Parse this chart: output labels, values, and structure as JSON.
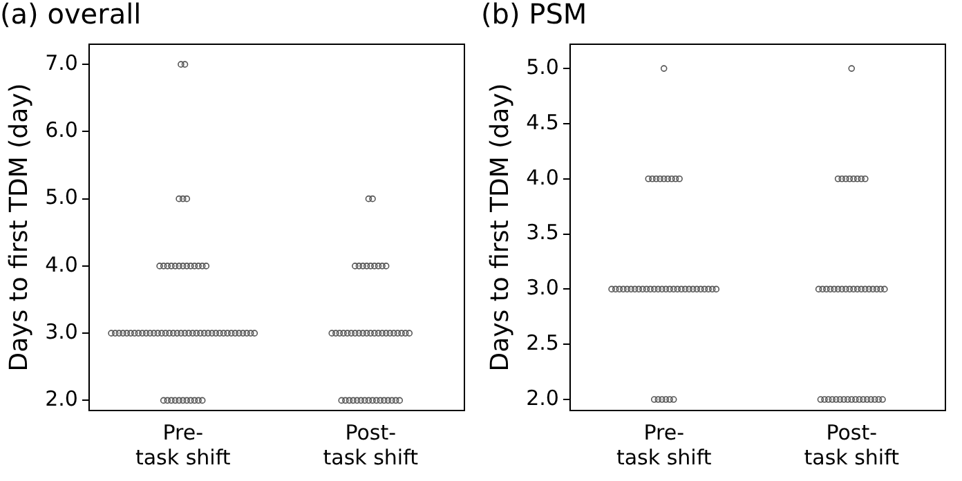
{
  "chart_data": [
    {
      "type": "scatter",
      "title": "(a) overall",
      "ylabel": "Days to first TDM (day)",
      "categories": [
        "Pre-\ntask shift",
        "Post-\ntask shift"
      ],
      "ylim": [
        1.85,
        7.3
      ],
      "yticks": [
        {
          "value": 2,
          "label": "2.0"
        },
        {
          "value": 3,
          "label": "3.0"
        },
        {
          "value": 4,
          "label": "4.0"
        },
        {
          "value": 5,
          "label": "5.0"
        },
        {
          "value": 6,
          "label": "6.0"
        },
        {
          "value": 7,
          "label": "7.0"
        }
      ],
      "grid": false,
      "legend": false,
      "marker": "circle",
      "series": [
        {
          "color": "#555555",
          "x": [
            "Pre-\ntask shift",
            "Pre-\ntask shift",
            "Pre-\ntask shift",
            "Pre-\ntask shift",
            "Pre-\ntask shift",
            "Pre-\ntask shift",
            "Pre-\ntask shift",
            "Pre-\ntask shift",
            "Pre-\ntask shift",
            "Pre-\ntask shift",
            "Pre-\ntask shift",
            "Pre-\ntask shift",
            "Pre-\ntask shift",
            "Pre-\ntask shift",
            "Pre-\ntask shift",
            "Pre-\ntask shift",
            "Pre-\ntask shift",
            "Pre-\ntask shift",
            "Pre-\ntask shift",
            "Pre-\ntask shift",
            "Pre-\ntask shift",
            "Pre-\ntask shift",
            "Pre-\ntask shift",
            "Pre-\ntask shift",
            "Pre-\ntask shift",
            "Pre-\ntask shift",
            "Pre-\ntask shift",
            "Pre-\ntask shift",
            "Pre-\ntask shift",
            "Pre-\ntask shift",
            "Pre-\ntask shift",
            "Pre-\ntask shift",
            "Pre-\ntask shift",
            "Pre-\ntask shift",
            "Pre-\ntask shift",
            "Pre-\ntask shift",
            "Pre-\ntask shift",
            "Pre-\ntask shift",
            "Pre-\ntask shift",
            "Pre-\ntask shift",
            "Pre-\ntask shift",
            "Pre-\ntask shift",
            "Pre-\ntask shift",
            "Pre-\ntask shift",
            "Pre-\ntask shift",
            "Pre-\ntask shift",
            "Pre-\ntask shift",
            "Pre-\ntask shift",
            "Pre-\ntask shift",
            "Pre-\ntask shift",
            "Pre-\ntask shift",
            "Pre-\ntask shift",
            "Pre-\ntask shift",
            "Pre-\ntask shift",
            "Pre-\ntask shift",
            "Pre-\ntask shift",
            "Pre-\ntask shift",
            "Pre-\ntask shift",
            "Pre-\ntask shift",
            "Pre-\ntask shift",
            "Pre-\ntask shift",
            "Pre-\ntask shift",
            "Pre-\ntask shift",
            "Pre-\ntask shift",
            "Pre-\ntask shift",
            "Pre-\ntask shift",
            "Pre-\ntask shift"
          ],
          "values": [
            2,
            2,
            2,
            2,
            2,
            2,
            2,
            2,
            2,
            2,
            2,
            3,
            3,
            3,
            3,
            3,
            3,
            3,
            3,
            3,
            3,
            3,
            3,
            3,
            3,
            3,
            3,
            3,
            3,
            3,
            3,
            3,
            3,
            3,
            3,
            3,
            3,
            3,
            3,
            3,
            3,
            3,
            3,
            3,
            3,
            3,
            3,
            3,
            3,
            4,
            4,
            4,
            4,
            4,
            4,
            4,
            4,
            4,
            4,
            4,
            4,
            4,
            5,
            5,
            5,
            7,
            7
          ]
        },
        {
          "color": "#555555",
          "x": [
            "Post-\ntask shift",
            "Post-\ntask shift",
            "Post-\ntask shift",
            "Post-\ntask shift",
            "Post-\ntask shift",
            "Post-\ntask shift",
            "Post-\ntask shift",
            "Post-\ntask shift",
            "Post-\ntask shift",
            "Post-\ntask shift",
            "Post-\ntask shift",
            "Post-\ntask shift",
            "Post-\ntask shift",
            "Post-\ntask shift",
            "Post-\ntask shift",
            "Post-\ntask shift",
            "Post-\ntask shift",
            "Post-\ntask shift",
            "Post-\ntask shift",
            "Post-\ntask shift",
            "Post-\ntask shift",
            "Post-\ntask shift",
            "Post-\ntask shift",
            "Post-\ntask shift",
            "Post-\ntask shift",
            "Post-\ntask shift",
            "Post-\ntask shift",
            "Post-\ntask shift",
            "Post-\ntask shift",
            "Post-\ntask shift",
            "Post-\ntask shift",
            "Post-\ntask shift",
            "Post-\ntask shift",
            "Post-\ntask shift",
            "Post-\ntask shift",
            "Post-\ntask shift",
            "Post-\ntask shift",
            "Post-\ntask shift",
            "Post-\ntask shift",
            "Post-\ntask shift",
            "Post-\ntask shift",
            "Post-\ntask shift",
            "Post-\ntask shift",
            "Post-\ntask shift",
            "Post-\ntask shift",
            "Post-\ntask shift",
            "Post-\ntask shift",
            "Post-\ntask shift"
          ],
          "values": [
            2,
            2,
            2,
            2,
            2,
            2,
            2,
            2,
            2,
            2,
            2,
            2,
            2,
            2,
            2,
            2,
            3,
            3,
            3,
            3,
            3,
            3,
            3,
            3,
            3,
            3,
            3,
            3,
            3,
            3,
            3,
            3,
            3,
            3,
            3,
            3,
            3,
            4,
            4,
            4,
            4,
            4,
            4,
            4,
            4,
            4,
            5,
            5
          ]
        }
      ]
    },
    {
      "type": "scatter",
      "title": "(b) PSM",
      "ylabel": "Days to first TDM (day)",
      "categories": [
        "Pre-\ntask shift",
        "Post-\ntask shift"
      ],
      "ylim": [
        1.9,
        5.22
      ],
      "yticks": [
        {
          "value": 2,
          "label": "2.0"
        },
        {
          "value": 2.5,
          "label": "2.5"
        },
        {
          "value": 3,
          "label": "3.0"
        },
        {
          "value": 3.5,
          "label": "3.5"
        },
        {
          "value": 4,
          "label": "4.0"
        },
        {
          "value": 4.5,
          "label": "4.5"
        },
        {
          "value": 5,
          "label": "5.0"
        }
      ],
      "grid": false,
      "legend": false,
      "marker": "circle",
      "series": [
        {
          "color": "#555555",
          "x": [
            "Pre-\ntask shift",
            "Pre-\ntask shift",
            "Pre-\ntask shift",
            "Pre-\ntask shift",
            "Pre-\ntask shift",
            "Pre-\ntask shift",
            "Pre-\ntask shift",
            "Pre-\ntask shift",
            "Pre-\ntask shift",
            "Pre-\ntask shift",
            "Pre-\ntask shift",
            "Pre-\ntask shift",
            "Pre-\ntask shift",
            "Pre-\ntask shift",
            "Pre-\ntask shift",
            "Pre-\ntask shift",
            "Pre-\ntask shift",
            "Pre-\ntask shift",
            "Pre-\ntask shift",
            "Pre-\ntask shift",
            "Pre-\ntask shift",
            "Pre-\ntask shift",
            "Pre-\ntask shift",
            "Pre-\ntask shift",
            "Pre-\ntask shift",
            "Pre-\ntask shift",
            "Pre-\ntask shift",
            "Pre-\ntask shift",
            "Pre-\ntask shift",
            "Pre-\ntask shift",
            "Pre-\ntask shift",
            "Pre-\ntask shift",
            "Pre-\ntask shift",
            "Pre-\ntask shift",
            "Pre-\ntask shift",
            "Pre-\ntask shift",
            "Pre-\ntask shift",
            "Pre-\ntask shift",
            "Pre-\ntask shift",
            "Pre-\ntask shift",
            "Pre-\ntask shift",
            "Pre-\ntask shift",
            "Pre-\ntask shift",
            "Pre-\ntask shift"
          ],
          "values": [
            2,
            2,
            2,
            2,
            2,
            2,
            3,
            3,
            3,
            3,
            3,
            3,
            3,
            3,
            3,
            3,
            3,
            3,
            3,
            3,
            3,
            3,
            3,
            3,
            3,
            3,
            3,
            3,
            3,
            3,
            3,
            3,
            3,
            3,
            4,
            4,
            4,
            4,
            4,
            4,
            4,
            4,
            4,
            5
          ]
        },
        {
          "color": "#555555",
          "x": [
            "Post-\ntask shift",
            "Post-\ntask shift",
            "Post-\ntask shift",
            "Post-\ntask shift",
            "Post-\ntask shift",
            "Post-\ntask shift",
            "Post-\ntask shift",
            "Post-\ntask shift",
            "Post-\ntask shift",
            "Post-\ntask shift",
            "Post-\ntask shift",
            "Post-\ntask shift",
            "Post-\ntask shift",
            "Post-\ntask shift",
            "Post-\ntask shift",
            "Post-\ntask shift",
            "Post-\ntask shift",
            "Post-\ntask shift",
            "Post-\ntask shift",
            "Post-\ntask shift",
            "Post-\ntask shift",
            "Post-\ntask shift",
            "Post-\ntask shift",
            "Post-\ntask shift",
            "Post-\ntask shift",
            "Post-\ntask shift",
            "Post-\ntask shift",
            "Post-\ntask shift",
            "Post-\ntask shift",
            "Post-\ntask shift",
            "Post-\ntask shift",
            "Post-\ntask shift",
            "Post-\ntask shift",
            "Post-\ntask shift",
            "Post-\ntask shift",
            "Post-\ntask shift",
            "Post-\ntask shift",
            "Post-\ntask shift",
            "Post-\ntask shift",
            "Post-\ntask shift",
            "Post-\ntask shift",
            "Post-\ntask shift",
            "Post-\ntask shift",
            "Post-\ntask shift"
          ],
          "values": [
            2,
            2,
            2,
            2,
            2,
            2,
            2,
            2,
            2,
            2,
            2,
            2,
            2,
            2,
            2,
            2,
            2,
            3,
            3,
            3,
            3,
            3,
            3,
            3,
            3,
            3,
            3,
            3,
            3,
            3,
            3,
            3,
            3,
            3,
            3,
            4,
            4,
            4,
            4,
            4,
            4,
            4,
            4,
            5
          ]
        }
      ]
    }
  ]
}
